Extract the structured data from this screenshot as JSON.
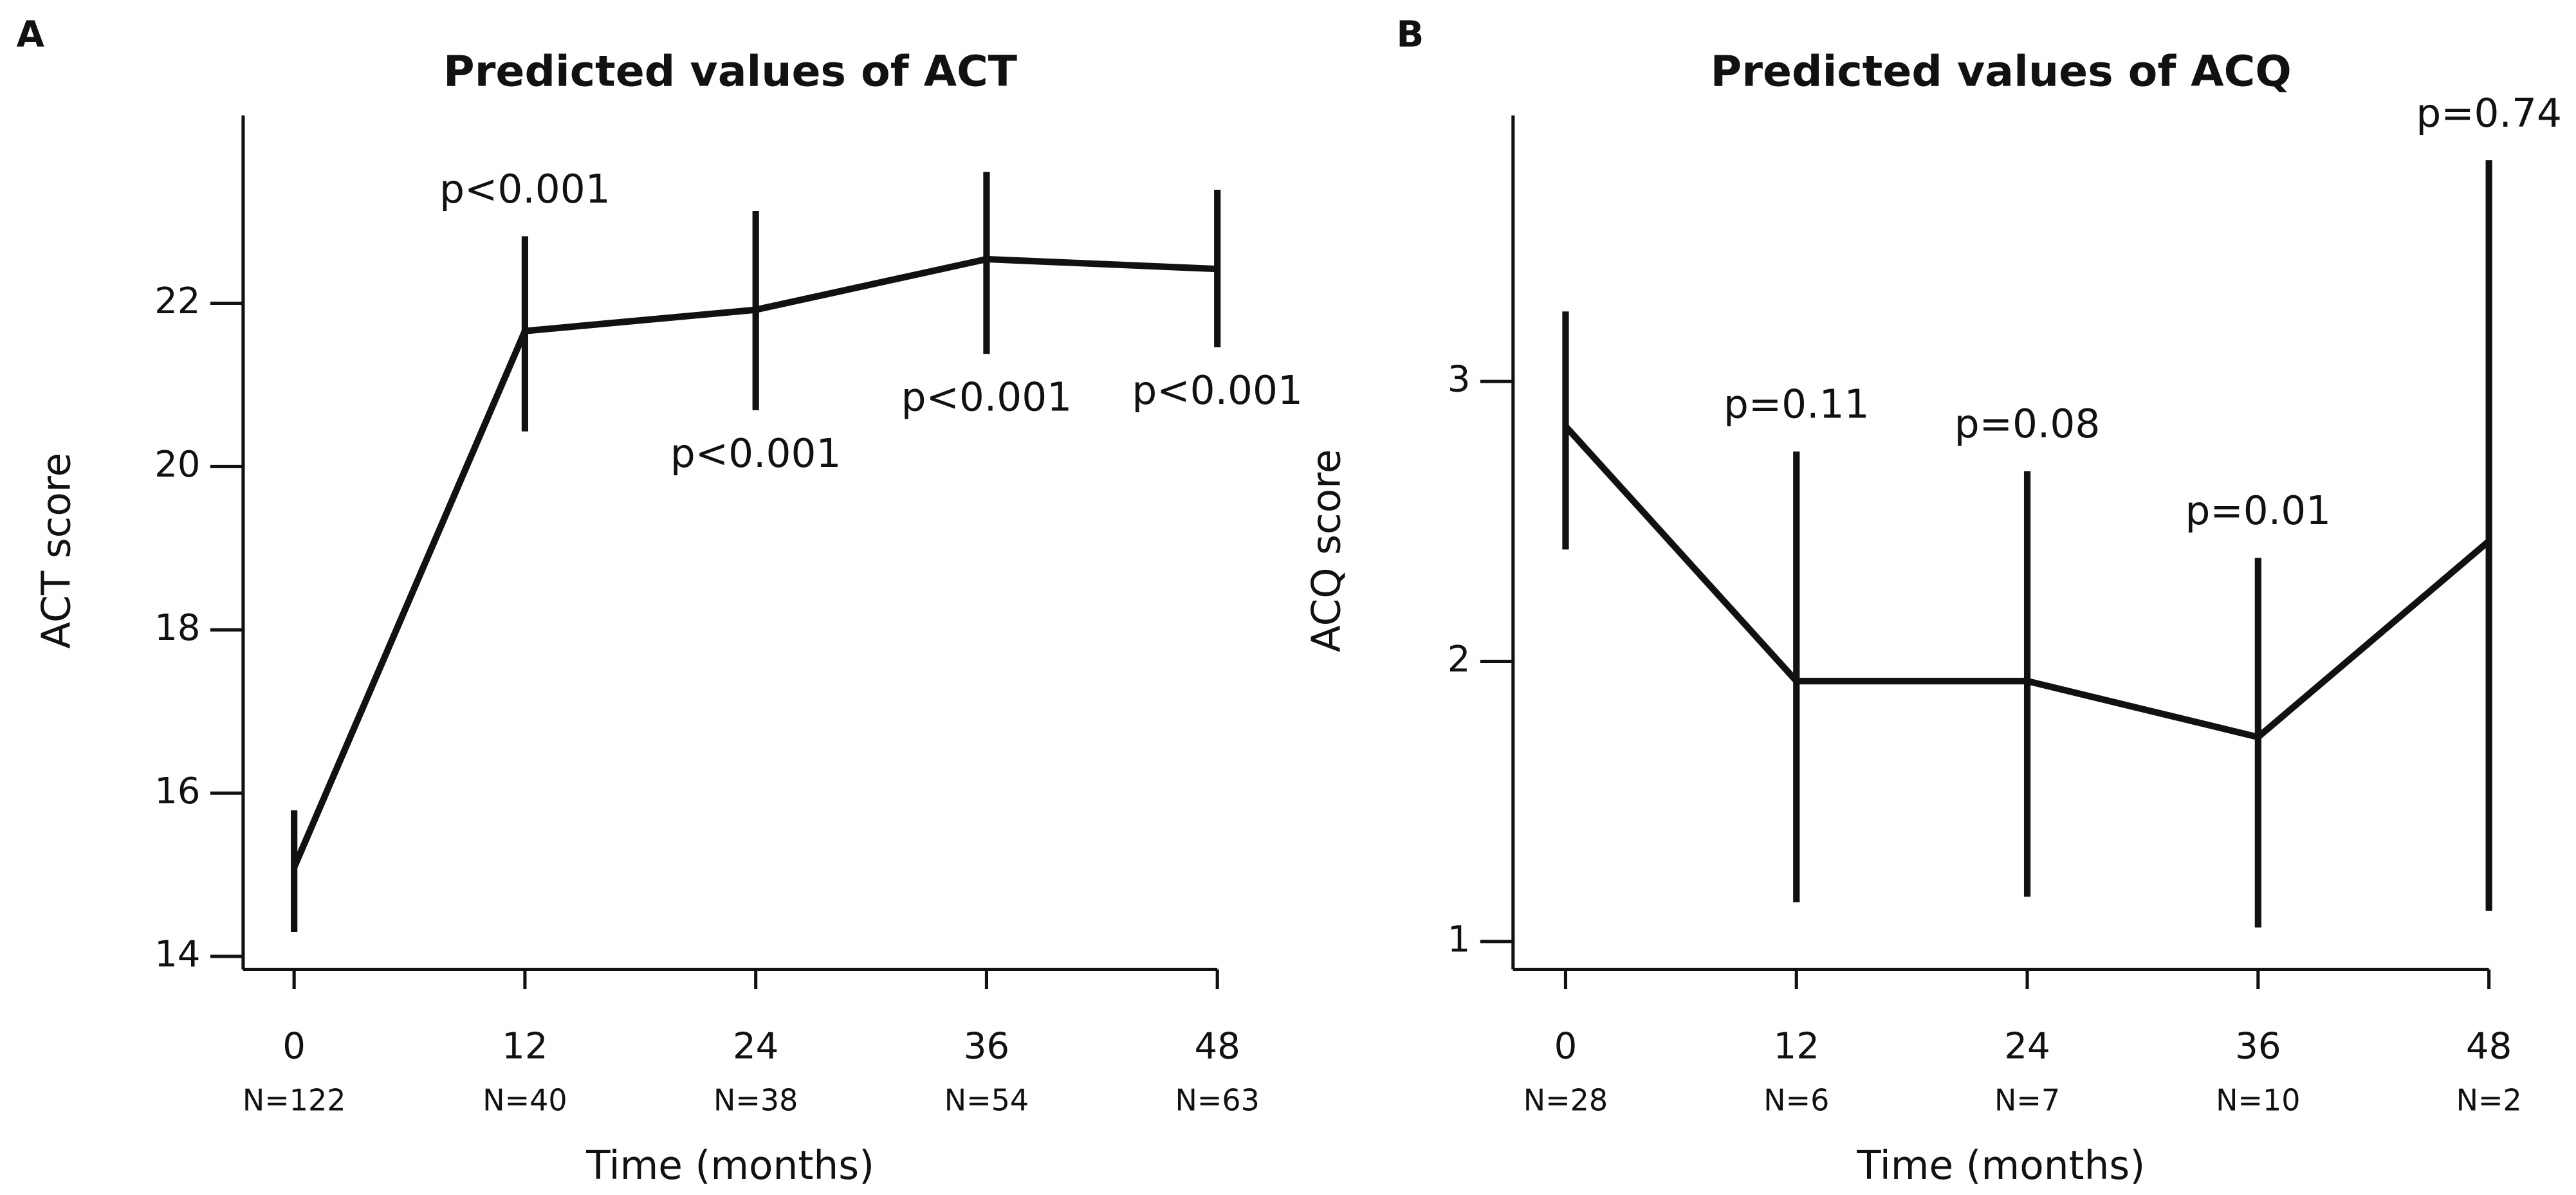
{
  "chart_data": [
    {
      "type": "line",
      "panel_label": "A",
      "title": "Predicted values of ACT",
      "x_label": "Time (months)",
      "y_label": "ACT score",
      "x": [
        0,
        12,
        24,
        36,
        48
      ],
      "n_labels": [
        "N=122",
        "N=40",
        "N=38",
        "N=54",
        "N=63"
      ],
      "series": [
        {
          "color": "#111111",
          "values": [
            15.09,
            21.66,
            21.92,
            22.54,
            22.42
          ],
          "lower": [
            14.3,
            20.43,
            20.69,
            21.38,
            21.46
          ],
          "upper": [
            15.79,
            22.82,
            23.13,
            23.61,
            23.39
          ]
        }
      ],
      "annotations": [
        null,
        "p<0.001",
        "p<0.001",
        "p<0.001",
        "p<0.001"
      ],
      "xlim": [
        -2.65,
        48
      ],
      "ylim": [
        13.84,
        24.3
      ],
      "xticks": [
        0,
        12,
        24,
        36,
        48
      ],
      "yticks": [
        14,
        16,
        18,
        20,
        22
      ]
    },
    {
      "type": "line",
      "panel_label": "B",
      "title": "Predicted values of ACQ",
      "x_label": "Time (months)",
      "y_label": "ACQ score",
      "x": [
        0,
        12,
        24,
        36,
        48
      ],
      "n_labels": [
        "N=28",
        "N=6",
        "N=7",
        "N=10",
        "N=2"
      ],
      "series": [
        {
          "color": "#111111",
          "values": [
            2.84,
            1.93,
            1.93,
            1.73,
            2.43
          ],
          "lower": [
            2.4,
            1.14,
            1.16,
            1.05,
            1.11
          ],
          "upper": [
            3.25,
            2.75,
            2.68,
            2.37,
            3.79
          ]
        }
      ],
      "annotations": [
        null,
        "p=0.11",
        "p=0.08",
        "p=0.01",
        "p=0.74"
      ],
      "xlim": [
        -2.73,
        48
      ],
      "ylim": [
        0.9,
        3.95
      ],
      "xticks": [
        0,
        12,
        24,
        36,
        48
      ],
      "yticks": [
        1,
        2,
        3
      ]
    }
  ]
}
